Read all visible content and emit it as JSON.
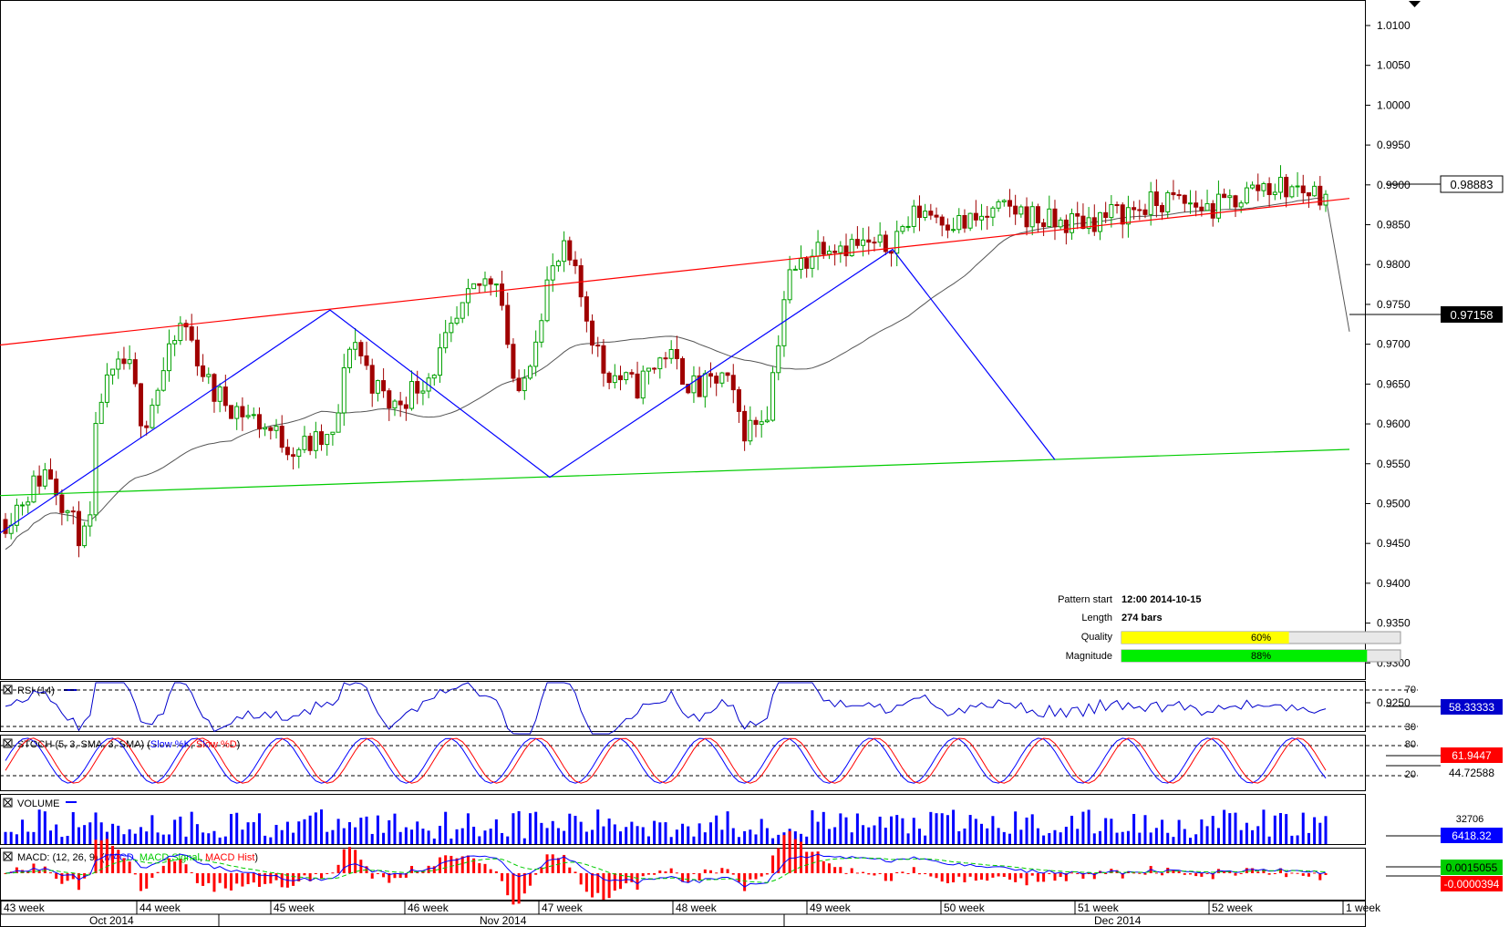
{
  "colors": {
    "bull": "#00a000",
    "bear": "#a00000",
    "resistance": "#ff0000",
    "support": "#00cc00",
    "zigzag": "#0000ff",
    "ma": "#555555",
    "rsi": "#0000cc",
    "stoch_k": "#0000ff",
    "stoch_d": "#ff0000",
    "volume": "#0000ff",
    "macd": "#0000ff",
    "macd_signal": "#00cc00",
    "macd_hist": "#ff0000",
    "quality_bar": "#ffff00",
    "magnitude_bar": "#00ee00"
  },
  "chart_data": {
    "type": "candlestick",
    "y_axis": {
      "range": [
        0.922,
        1.013
      ],
      "ticks": [
        "1.0100",
        "1.0050",
        "1.0000",
        "0.9950",
        "0.9900",
        "0.9850",
        "0.9800",
        "0.9750",
        "0.9700",
        "0.9650",
        "0.9600",
        "0.9550",
        "0.9500",
        "0.9450",
        "0.9400",
        "0.9350",
        "0.9300",
        "0.9250"
      ]
    },
    "price_labels": {
      "last": "0.98883",
      "ma": "0.97158"
    },
    "x_axis": {
      "weeks": [
        "43 week",
        "44 week",
        "45 week",
        "46 week",
        "47 week",
        "48 week",
        "49 week",
        "50 week",
        "51 week",
        "52 week",
        "1 week"
      ],
      "months": [
        "Oct 2014",
        "Nov 2014",
        "Dec 2014"
      ]
    },
    "pattern": {
      "resistance": [
        [
          0,
          0.9699
        ],
        [
          1480,
          0.9883
        ]
      ],
      "support": [
        [
          0,
          0.951
        ],
        [
          1480,
          0.9568
        ]
      ],
      "zigzag": [
        [
          0,
          0.9463
        ],
        [
          362,
          0.9743
        ],
        [
          603,
          0.9533
        ],
        [
          979,
          0.9819
        ],
        [
          1157,
          0.9555
        ]
      ]
    },
    "info": {
      "pattern_start_label": "Pattern start",
      "pattern_start": "12:00 2014-10-15",
      "length_label": "Length",
      "length": "274 bars",
      "quality_label": "Quality",
      "quality": "60%",
      "quality_value": 0.6,
      "magnitude_label": "Magnitude",
      "magnitude": "88%",
      "magnitude_value": 0.88
    },
    "indicators": {
      "rsi": {
        "title": "RSI (14)",
        "levels": [
          "70",
          "30"
        ],
        "value": "58.33333"
      },
      "stoch": {
        "title_main": "STOCH (5, 3, SMA, 3, SMA) (",
        "title_k": "Slow %K",
        "title_sep": ", ",
        "title_d": "Slow %D",
        "title_end": ")",
        "levels": [
          "80",
          "20"
        ],
        "value_k": "61.9447",
        "value_d": "44.72588"
      },
      "volume": {
        "title": "VOLUME",
        "level": "32706",
        "value": "6418.32"
      },
      "macd": {
        "title_main": "MACD: (12, 26, 9) (",
        "title_macd": "MACD",
        "title_sep1": ", ",
        "title_signal": "MACD Signal",
        "title_sep2": ", ",
        "title_hist": "MACD Hist",
        "title_end": ")",
        "value_macd": "0.0015055",
        "value_signal": "-0.0000394"
      }
    }
  }
}
